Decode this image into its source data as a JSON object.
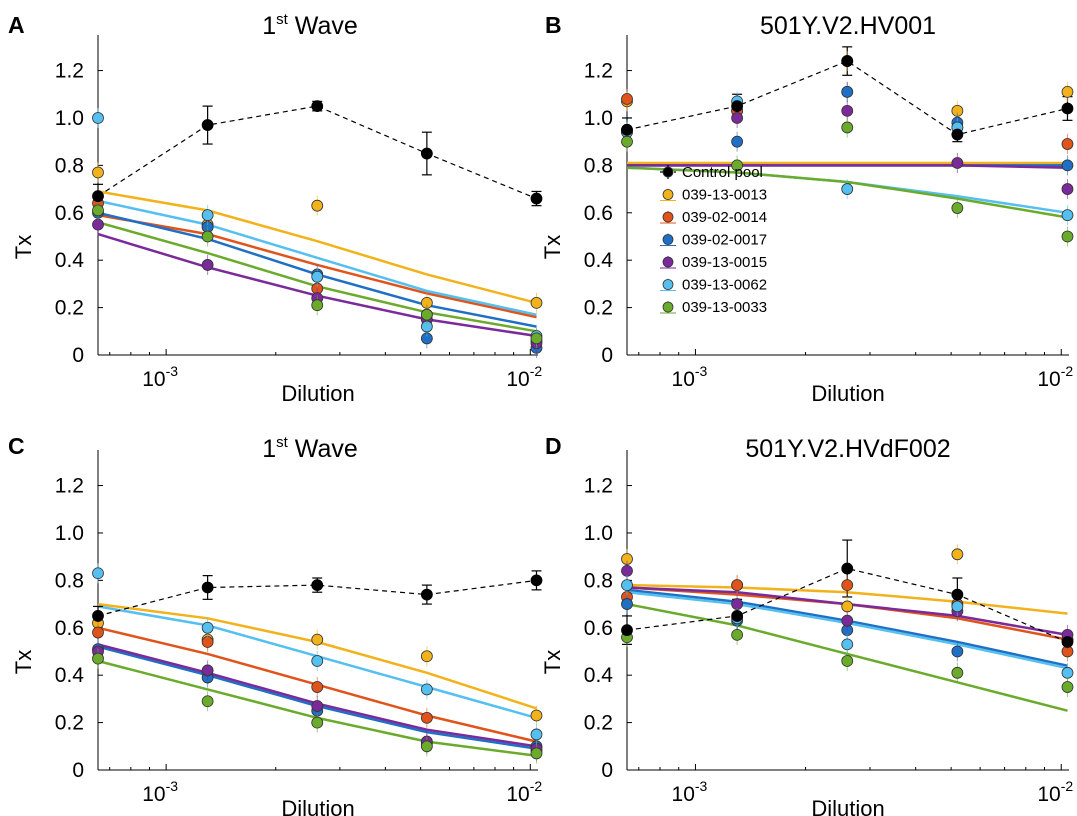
{
  "colors": {
    "Control pool": "#000000",
    "039-13-0013": "#f2b21b",
    "039-02-0014": "#e0541c",
    "039-02-0017": "#1f6fc4",
    "039-13-0015": "#7b2a9a",
    "039-13-0062": "#55c0f0",
    "039-13-0033": "#6aab2c"
  },
  "legend_series": [
    "Control pool",
    "039-13-0013",
    "039-02-0014",
    "039-02-0017",
    "039-13-0015",
    "039-13-0062",
    "039-13-0033"
  ],
  "chart_data": [
    {
      "panel": "A",
      "type": "scatter",
      "title_main": "1",
      "title_sup": "st",
      "title_rest": " Wave",
      "xlabel": "Dilution",
      "ylabel": "Tx",
      "xscale": "log",
      "xlim": [
        0.00065,
        0.0105
      ],
      "ylim": [
        0,
        1.35
      ],
      "yticks": [
        "0",
        "0.2",
        "0.4",
        "0.6",
        "0.8",
        "1.0",
        "1.2"
      ],
      "xticks": [
        {
          "base": "10",
          "exp": "-3",
          "value": 0.001
        },
        {
          "base": "10",
          "exp": "-2",
          "value": 0.01
        }
      ],
      "x": [
        0.00065,
        0.0013,
        0.0026,
        0.0052,
        0.0104
      ],
      "control": {
        "name": "Control pool",
        "values": [
          0.67,
          0.97,
          1.05,
          0.85,
          0.66
        ],
        "errors": [
          0.05,
          0.08,
          0.02,
          0.09,
          0.03
        ]
      },
      "series": [
        {
          "name": "039-13-0013",
          "values": [
            0.77,
            0.55,
            0.63,
            0.22,
            0.22
          ],
          "fit": [
            0.69,
            0.61,
            0.48,
            0.34,
            0.22
          ]
        },
        {
          "name": "039-02-0014",
          "values": [
            0.64,
            0.54,
            0.28,
            0.17,
            0.06
          ],
          "fit": [
            0.59,
            0.51,
            0.38,
            0.26,
            0.16
          ]
        },
        {
          "name": "039-02-0017",
          "values": [
            0.6,
            0.54,
            0.34,
            0.07,
            0.03
          ],
          "fit": [
            0.6,
            0.49,
            0.34,
            0.21,
            0.12
          ]
        },
        {
          "name": "039-13-0015",
          "values": [
            0.55,
            0.38,
            0.24,
            0.15,
            0.05
          ],
          "fit": [
            0.51,
            0.37,
            0.25,
            0.15,
            0.08
          ]
        },
        {
          "name": "039-13-0062",
          "values": [
            1.0,
            0.59,
            0.33,
            0.12,
            0.08
          ],
          "fit": [
            0.65,
            0.55,
            0.41,
            0.27,
            0.17
          ]
        },
        {
          "name": "039-13-0033",
          "values": [
            0.61,
            0.5,
            0.21,
            0.17,
            0.07
          ],
          "fit": [
            0.56,
            0.43,
            0.29,
            0.18,
            0.1
          ]
        }
      ]
    },
    {
      "panel": "B",
      "type": "scatter",
      "title_main": "501Y.V2.HV001",
      "title_sup": "",
      "title_rest": "",
      "xlabel": "Dilution",
      "ylabel": "Tx",
      "xscale": "log",
      "xlim": [
        0.00065,
        0.0105
      ],
      "ylim": [
        0,
        1.35
      ],
      "yticks": [
        "0",
        "0.2",
        "0.4",
        "0.6",
        "0.8",
        "1.0",
        "1.2"
      ],
      "xticks": [
        {
          "base": "10",
          "exp": "-3",
          "value": 0.001
        },
        {
          "base": "10",
          "exp": "-2",
          "value": 0.01
        }
      ],
      "x": [
        0.00065,
        0.0013,
        0.0026,
        0.0052,
        0.0104
      ],
      "control": {
        "name": "Control pool",
        "values": [
          0.95,
          1.05,
          1.24,
          0.93,
          1.04
        ],
        "errors": [
          0.05,
          0.05,
          0.06,
          0.03,
          0.05
        ]
      },
      "series": [
        {
          "name": "039-13-0013",
          "values": [
            1.07,
            1.03,
            1.24,
            1.03,
            1.11
          ],
          "fit": [
            0.81,
            0.81,
            0.81,
            0.81,
            0.81
          ]
        },
        {
          "name": "039-02-0014",
          "values": [
            1.08,
            1.03,
            1.11,
            0.96,
            0.89
          ],
          "fit": [
            0.8,
            0.8,
            0.8,
            0.8,
            0.8
          ]
        },
        {
          "name": "039-02-0017",
          "values": [
            0.95,
            0.9,
            1.11,
            0.98,
            0.8
          ],
          "fit": [
            0.8,
            0.8,
            0.8,
            0.8,
            0.8
          ]
        },
        {
          "name": "039-13-0015",
          "values": [
            0.94,
            1.0,
            1.03,
            0.81,
            0.7
          ],
          "fit": [
            0.8,
            0.8,
            0.8,
            0.8,
            0.79
          ]
        },
        {
          "name": "039-13-0062",
          "values": [
            0.94,
            1.07,
            0.7,
            0.96,
            0.59
          ],
          "fit": [
            0.79,
            0.77,
            0.73,
            0.67,
            0.6
          ]
        },
        {
          "name": "039-13-0033",
          "values": [
            0.9,
            0.8,
            0.96,
            0.62,
            0.5
          ],
          "fit": [
            0.79,
            0.77,
            0.73,
            0.66,
            0.58
          ]
        }
      ]
    },
    {
      "panel": "C",
      "type": "scatter",
      "title_main": "1",
      "title_sup": "st",
      "title_rest": " Wave",
      "xlabel": "Dilution",
      "ylabel": "Tx",
      "xscale": "log",
      "xlim": [
        0.00065,
        0.0105
      ],
      "ylim": [
        0,
        1.35
      ],
      "yticks": [
        "0",
        "0.2",
        "0.4",
        "0.6",
        "0.8",
        "1.0",
        "1.2"
      ],
      "xticks": [
        {
          "base": "10",
          "exp": "-3",
          "value": 0.001
        },
        {
          "base": "10",
          "exp": "-2",
          "value": 0.01
        }
      ],
      "x": [
        0.00065,
        0.0013,
        0.0026,
        0.0052,
        0.0104
      ],
      "control": {
        "name": "Control pool",
        "values": [
          0.65,
          0.77,
          0.78,
          0.74,
          0.8
        ],
        "errors": [
          0.04,
          0.05,
          0.03,
          0.04,
          0.04
        ]
      },
      "series": [
        {
          "name": "039-13-0013",
          "values": [
            0.62,
            0.55,
            0.55,
            0.48,
            0.23
          ],
          "fit": [
            0.7,
            0.64,
            0.54,
            0.41,
            0.26
          ]
        },
        {
          "name": "039-02-0014",
          "values": [
            0.58,
            0.54,
            0.35,
            0.22,
            0.08
          ],
          "fit": [
            0.6,
            0.49,
            0.36,
            0.23,
            0.12
          ]
        },
        {
          "name": "039-02-0017",
          "values": [
            0.51,
            0.39,
            0.25,
            0.11,
            0.1
          ],
          "fit": [
            0.52,
            0.4,
            0.27,
            0.16,
            0.09
          ]
        },
        {
          "name": "039-13-0015",
          "values": [
            0.5,
            0.42,
            0.27,
            0.12,
            0.09
          ],
          "fit": [
            0.53,
            0.41,
            0.28,
            0.17,
            0.1
          ]
        },
        {
          "name": "039-13-0062",
          "values": [
            0.83,
            0.6,
            0.46,
            0.34,
            0.15
          ],
          "fit": [
            0.69,
            0.61,
            0.48,
            0.35,
            0.22
          ]
        },
        {
          "name": "039-13-0033",
          "values": [
            0.47,
            0.29,
            0.2,
            0.1,
            0.07
          ],
          "fit": [
            0.46,
            0.34,
            0.22,
            0.12,
            0.06
          ]
        }
      ]
    },
    {
      "panel": "D",
      "type": "scatter",
      "title_main": "501Y.V2.HVdF002",
      "title_sup": "",
      "title_rest": "",
      "xlabel": "Dilution",
      "ylabel": "Tx",
      "xscale": "log",
      "xlim": [
        0.00065,
        0.0105
      ],
      "ylim": [
        0,
        1.35
      ],
      "yticks": [
        "0",
        "0.2",
        "0.4",
        "0.6",
        "0.8",
        "1.0",
        "1.2"
      ],
      "xticks": [
        {
          "base": "10",
          "exp": "-3",
          "value": 0.001
        },
        {
          "base": "10",
          "exp": "-2",
          "value": 0.01
        }
      ],
      "x": [
        0.00065,
        0.0013,
        0.0026,
        0.0052,
        0.0104
      ],
      "control": {
        "name": "Control pool",
        "values": [
          0.59,
          0.65,
          0.85,
          0.74,
          0.54
        ],
        "errors": [
          0.06,
          0.07,
          0.12,
          0.07,
          0.04
        ]
      },
      "series": [
        {
          "name": "039-13-0013",
          "values": [
            0.89,
            0.78,
            0.69,
            0.91,
            0.55
          ],
          "fit": [
            0.78,
            0.77,
            0.75,
            0.71,
            0.66
          ]
        },
        {
          "name": "039-02-0014",
          "values": [
            0.73,
            0.78,
            0.78,
            0.7,
            0.5
          ],
          "fit": [
            0.77,
            0.74,
            0.7,
            0.64,
            0.55
          ]
        },
        {
          "name": "039-02-0017",
          "values": [
            0.7,
            0.63,
            0.59,
            0.5,
            0.55
          ],
          "fit": [
            0.76,
            0.71,
            0.63,
            0.54,
            0.44
          ]
        },
        {
          "name": "039-13-0015",
          "values": [
            0.84,
            0.7,
            0.63,
            0.67,
            0.57
          ],
          "fit": [
            0.77,
            0.75,
            0.7,
            0.65,
            0.57
          ]
        },
        {
          "name": "039-13-0062",
          "values": [
            0.78,
            0.64,
            0.53,
            0.69,
            0.41
          ],
          "fit": [
            0.75,
            0.7,
            0.62,
            0.53,
            0.43
          ]
        },
        {
          "name": "039-13-0033",
          "values": [
            0.56,
            0.57,
            0.46,
            0.41,
            0.35
          ],
          "fit": [
            0.7,
            0.61,
            0.49,
            0.37,
            0.25
          ]
        }
      ]
    }
  ],
  "panel_labels": [
    "A",
    "B",
    "C",
    "D"
  ]
}
